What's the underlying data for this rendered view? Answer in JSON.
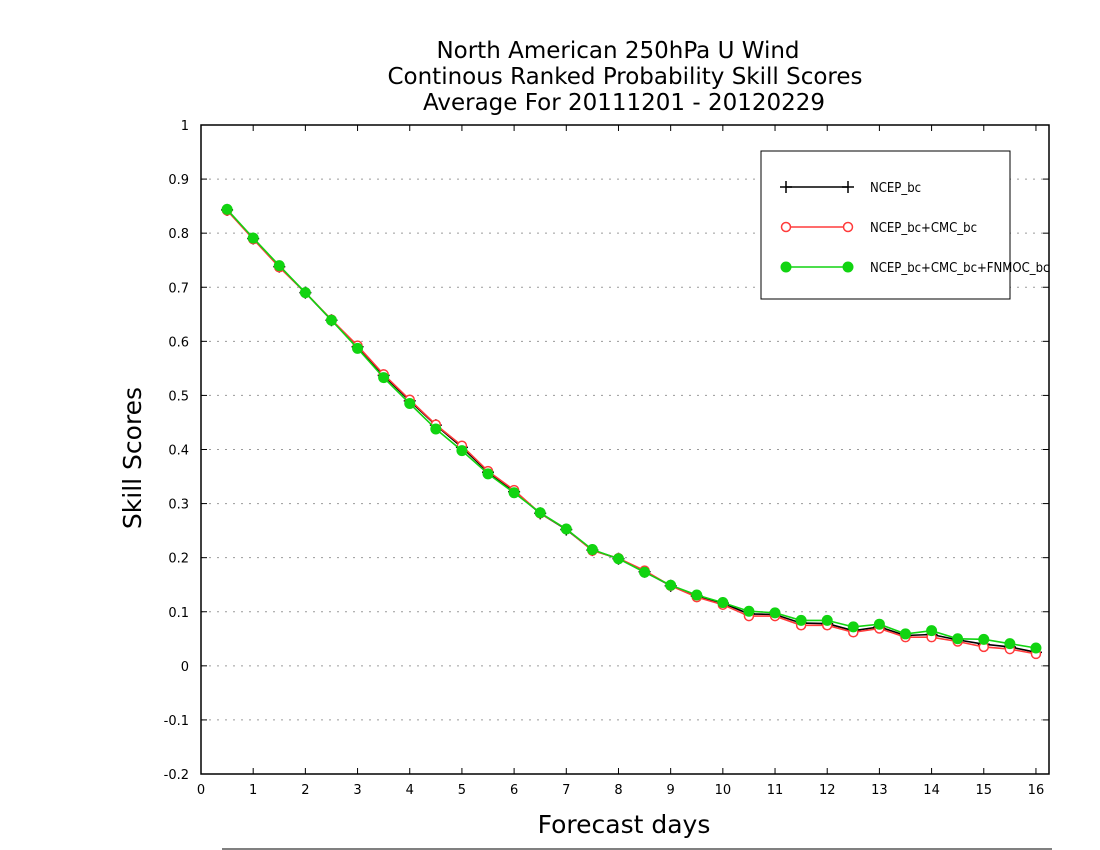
{
  "chart_data": {
    "type": "line",
    "title_lines": [
      "North American 250hPa U Wind",
      "Continous Ranked Probability Skill Scores",
      "Average For 20111201 - 20120229"
    ],
    "xlabel": "Forecast days",
    "ylabel": "Skill Scores",
    "xlim": [
      0,
      16.25
    ],
    "ylim": [
      -0.2,
      1
    ],
    "x_ticks": [
      "0",
      "1",
      "2",
      "3",
      "4",
      "5",
      "6",
      "7",
      "8",
      "9",
      "10",
      "11",
      "12",
      "13",
      "14",
      "15",
      "16"
    ],
    "y_ticks": [
      "1",
      "0.9",
      "0.8",
      "0.7",
      "0.6",
      "0.5",
      "0.4",
      "0.3",
      "0.2",
      "0.1",
      "0",
      "-0.1",
      "-0.2"
    ],
    "grid": "horizontal dotted",
    "legend_position": "top-right",
    "x": [
      0.5,
      1,
      1.5,
      2,
      2.5,
      3,
      3.5,
      4,
      4.5,
      5,
      5.5,
      6,
      6.5,
      7,
      7.5,
      8,
      8.5,
      9,
      9.5,
      10,
      10.5,
      11,
      11.5,
      12,
      12.5,
      13,
      13.5,
      14,
      14.5,
      15,
      15.5,
      16
    ],
    "series": [
      {
        "name": "NCEP_bc",
        "color": "#000000",
        "marker": "plus",
        "values": [
          0.843,
          0.79,
          0.738,
          0.69,
          0.639,
          0.59,
          0.537,
          0.49,
          0.445,
          0.404,
          0.358,
          0.322,
          0.282,
          0.252,
          0.214,
          0.198,
          0.174,
          0.148,
          0.129,
          0.116,
          0.096,
          0.095,
          0.079,
          0.078,
          0.065,
          0.072,
          0.056,
          0.058,
          0.048,
          0.04,
          0.035,
          0.025
        ]
      },
      {
        "name": "NCEP_bc+CMC_bc",
        "color": "#ff3b3b",
        "marker": "open-circle",
        "values": [
          0.842,
          0.789,
          0.737,
          0.69,
          0.64,
          0.592,
          0.539,
          0.492,
          0.446,
          0.407,
          0.36,
          0.325,
          0.282,
          0.253,
          0.213,
          0.199,
          0.176,
          0.148,
          0.127,
          0.113,
          0.092,
          0.092,
          0.075,
          0.075,
          0.062,
          0.069,
          0.053,
          0.053,
          0.045,
          0.035,
          0.031,
          0.022
        ]
      },
      {
        "name": "NCEP_bc+CMC_bc+FNMOC_bc",
        "color": "#11d411",
        "marker": "filled-circle",
        "values": [
          0.844,
          0.791,
          0.74,
          0.69,
          0.639,
          0.587,
          0.533,
          0.485,
          0.438,
          0.398,
          0.355,
          0.32,
          0.283,
          0.253,
          0.215,
          0.198,
          0.173,
          0.149,
          0.131,
          0.117,
          0.101,
          0.098,
          0.084,
          0.084,
          0.072,
          0.077,
          0.059,
          0.065,
          0.05,
          0.049,
          0.041,
          0.033
        ]
      }
    ]
  }
}
